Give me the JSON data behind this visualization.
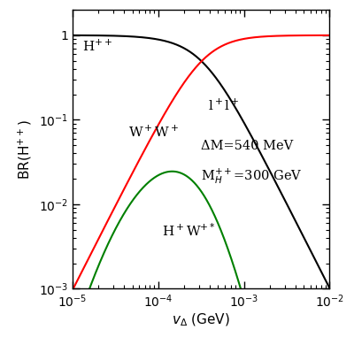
{
  "xlim": [
    1e-05,
    0.01
  ],
  "ylim": [
    0.001,
    2.0
  ],
  "xlabel_main": "v",
  "xlabel_sub": "Δ",
  "xlabel_unit": "(GeV)",
  "ylabel": "BR(H$^{++}$)",
  "annotation_line1": "ΔM=540 MeV",
  "annotation_line2": "M$_{H}^{++}$=300 GeV",
  "label_ll": "l$^+$l$^+$",
  "label_WW": "W$^+$W$^+$",
  "label_HW": "H$^+$W$^{+*}$",
  "label_Hpp": "H$^{++}$",
  "color_ll": "black",
  "color_WW": "red",
  "color_HW": "green",
  "v_min": 1e-05,
  "v_max": 0.01,
  "n_points": 1000,
  "v0": 0.00032,
  "v0_HW": 0.0002,
  "sigma_HW": 0.42,
  "HW_amplitude": 0.032,
  "lw": 1.5
}
